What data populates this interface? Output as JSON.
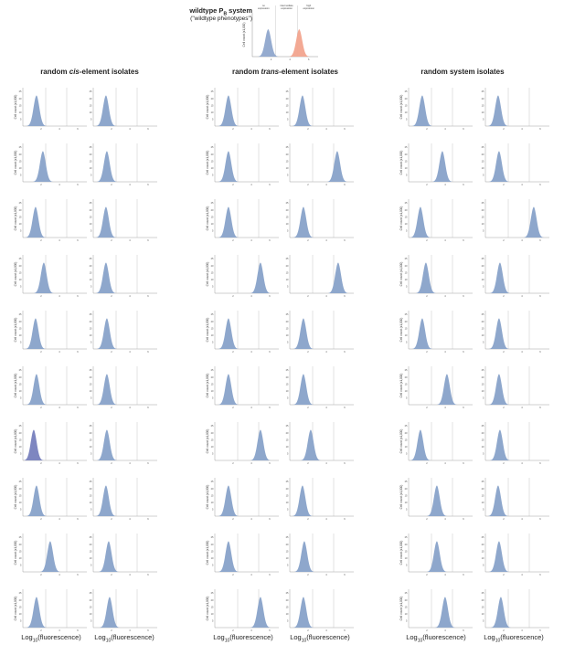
{
  "header": {
    "title_pre": "wildtype P",
    "title_sub": "B",
    "title_post": " system",
    "subtitle": "(\"wildtype phenotypes\")"
  },
  "reference_chart": {
    "regions": [
      "no expression",
      "intermediate expression",
      "high expression"
    ],
    "ylabel": "Cell count (x1,000)",
    "xticks": [
      "2",
      "4",
      "6"
    ],
    "peaks": [
      {
        "mean": 1.7,
        "color": "#8fa6cc"
      },
      {
        "mean": 5.0,
        "color": "#f2a48e"
      }
    ]
  },
  "groups": [
    {
      "title_pre": "random ",
      "title_em": "cis",
      "title_post": "-element isolates",
      "xlabel": "Log10(fluorescence)"
    },
    {
      "title_pre": "random ",
      "title_em": "trans",
      "title_post": "-element isolates",
      "xlabel": "Log10(fluorescence)"
    },
    {
      "title_pre": "random system isolates",
      "title_em": "",
      "title_post": "",
      "xlabel": "Log10(fluorescence)"
    }
  ],
  "xlabel_parts": {
    "pre": "Log",
    "sub": "10",
    "post": "(fluorescence)"
  },
  "small_plot": {
    "ylabel": "Cell count (x1,000)",
    "yticks": [
      "5",
      "10",
      "15",
      "20",
      "25"
    ],
    "xticks": [
      "2",
      "4",
      "6"
    ],
    "thresholds": [
      2.5,
      4.8
    ],
    "xlim": [
      0,
      7
    ],
    "color_fill": "#8ea7cc",
    "color_overlap": "#7e86c0"
  },
  "chart_data": {
    "type": "area",
    "description_note": "",
    "xlim": [
      0,
      7
    ],
    "ylim": [
      0,
      25
    ],
    "peaks_by_group": [
      [
        [
          1.5,
          1.4
        ],
        [
          2.2,
          1.5
        ],
        [
          1.4,
          1.4
        ],
        [
          2.3,
          1.4
        ],
        [
          1.4,
          1.5
        ],
        [
          1.5,
          1.5
        ],
        [
          1.2,
          1.5
        ],
        [
          1.5,
          1.4
        ],
        [
          3.0,
          1.7
        ],
        [
          1.5,
          1.8
        ]
      ],
      [
        [
          1.5,
          1.4
        ],
        [
          1.5,
          5.2
        ],
        [
          1.5,
          1.5
        ],
        [
          5.0,
          5.3
        ],
        [
          1.5,
          1.5
        ],
        [
          1.5,
          1.5
        ],
        [
          5.0,
          2.3
        ],
        [
          1.5,
          1.4
        ],
        [
          1.5,
          1.6
        ],
        [
          5.0,
          1.5
        ]
      ],
      [
        [
          1.5,
          1.4
        ],
        [
          3.7,
          1.5
        ],
        [
          1.3,
          5.3
        ],
        [
          1.9,
          1.6
        ],
        [
          1.5,
          1.5
        ],
        [
          4.2,
          1.5
        ],
        [
          1.3,
          1.6
        ],
        [
          3.1,
          1.4
        ],
        [
          3.1,
          1.5
        ],
        [
          4.0,
          1.7
        ]
      ]
    ]
  }
}
